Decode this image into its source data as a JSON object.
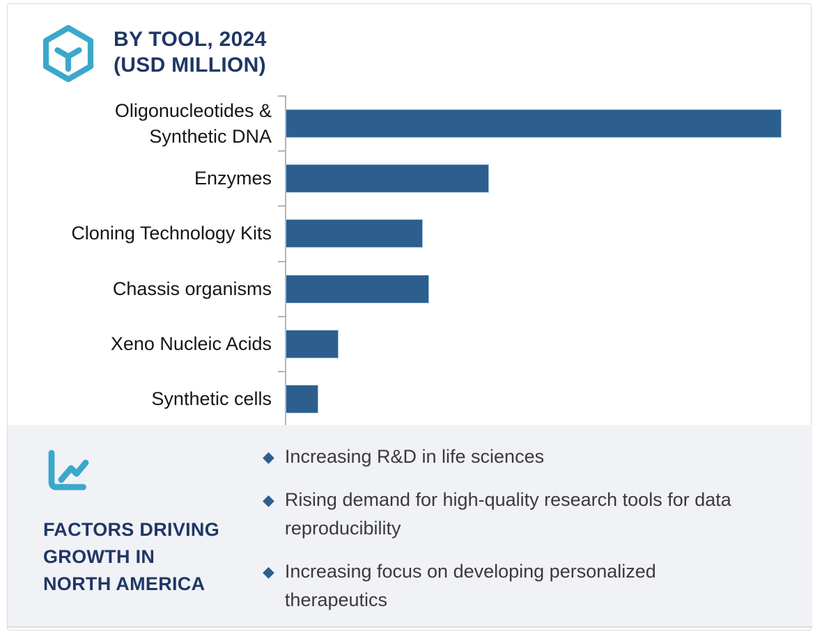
{
  "header": {
    "title_line1": "BY TOOL, 2024",
    "title_line2": "(USD MILLION)",
    "logo_icon": "hexagon-y-icon"
  },
  "chart_data": {
    "type": "bar",
    "orientation": "horizontal",
    "title": "BY TOOL, 2024 (USD MILLION)",
    "ylabel": "",
    "xlabel": "",
    "categories": [
      "Oligonucleotides & Synthetic DNA",
      "Enzymes",
      "Cloning Technology Kits",
      "Chassis organisms",
      "Xeno Nucleic Acids",
      "Synthetic cells"
    ],
    "display_labels": [
      "Oligonucleotides &\nSynthetic DNA",
      "Enzymes",
      "Cloning Technology Kits",
      "Chassis organisms",
      "Xeno Nucleic Acids",
      "Synthetic cells"
    ],
    "values_pct_of_max": [
      100,
      41,
      27.7,
      28.9,
      10.7,
      6.6
    ],
    "value_axis": "unlabeled (units: USD Million per title)",
    "grid": false,
    "legend": false,
    "bar_color": "#2c5f8d",
    "bar_edge_color": "#a5c4de",
    "axis_color": "#b3b4b6"
  },
  "factors": {
    "icon": "line-chart-icon",
    "heading": "FACTORS DRIVING\nGROWTH IN\nNORTH AMERICA",
    "bullets": [
      "Increasing R&D in life sciences",
      "Rising demand for high-quality research tools for data\nreproducibility",
      "Increasing focus on developing personalized\ntherapeutics"
    ],
    "bullet_glyph": "◆",
    "bullet_color": "#2c5f8d",
    "background_color": "#f1f2f6"
  },
  "colors": {
    "accent_teal": "#3ba8ca",
    "navy": "#1f3765",
    "bar_blue": "#2c5f8d",
    "panel_gray": "#f1f2f6",
    "frame_border": "#d8d9de",
    "text_dark": "#3a3a3c"
  }
}
